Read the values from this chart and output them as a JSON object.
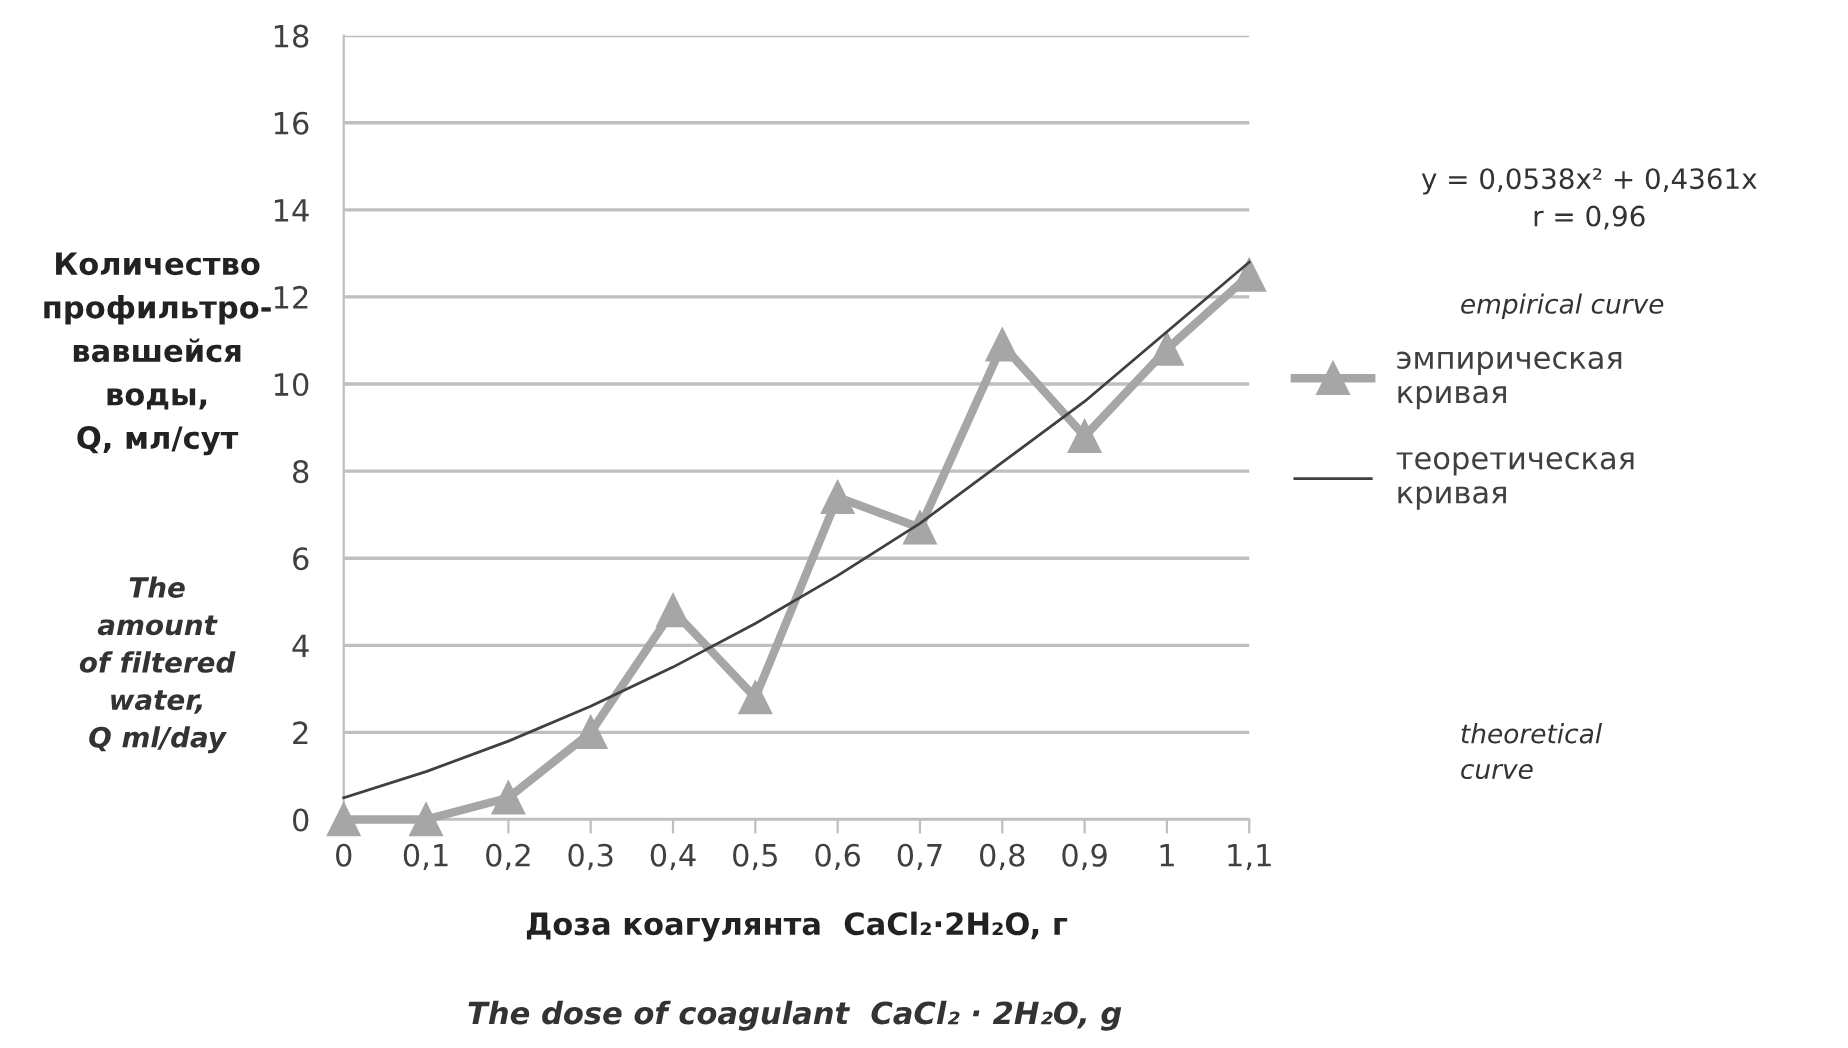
{
  "chart_data": {
    "type": "line",
    "ylabel": "Количество\nпрофильтро-\nвавшейся\nводы,\nQ, мл/сут",
    "xlabel": "Доза коагулянта  CaCl₂·2H₂O, г",
    "categories": [
      "0",
      "0,1",
      "0,2",
      "0,3",
      "0,4",
      "0,5",
      "0,6",
      "0,7",
      "0,8",
      "0,9",
      "1",
      "1,1"
    ],
    "series": [
      {
        "name": "эмпирическая\nкривая",
        "color": "#a6a6a6",
        "marker": "triangle",
        "values": [
          0,
          0,
          0.5,
          2,
          4.8,
          2.8,
          7.4,
          6.7,
          10.9,
          8.8,
          10.8,
          12.5
        ]
      },
      {
        "name": "теоретическая\nкривая",
        "color": "#404040",
        "marker": "none",
        "values": [
          0.5,
          1.1,
          1.8,
          2.6,
          3.5,
          4.5,
          5.6,
          6.8,
          8.2,
          9.6,
          11.2,
          12.8
        ]
      }
    ],
    "ylim": [
      0,
      18
    ],
    "yticks": [
      0,
      2,
      4,
      6,
      8,
      10,
      12,
      14,
      16,
      18
    ],
    "grid": "y",
    "legend": "right",
    "annotations": [
      "The\namount\nof filtered\nwater,\nQ ml/day",
      "The dose of coagulant  CaCl₂ · 2H₂O, g",
      "y = 0,0538x² + 0,4361x\nr = 0,96",
      "empirical curve",
      "theoretical\ncurve"
    ]
  }
}
